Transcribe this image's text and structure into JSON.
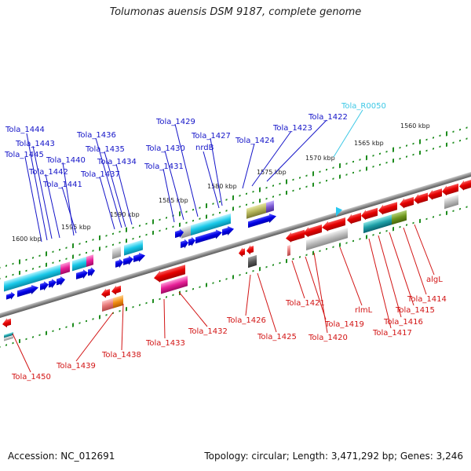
{
  "title": "Tolumonas auensis DSM 9187, complete genome",
  "footer": {
    "accession": "Accession: NC_012691",
    "topology": "Topology: circular; Length: 3,471,292 bp; Genes: 3,246"
  },
  "colors": {
    "forward_label": "#1414c8",
    "reverse_label": "#d21414",
    "rna_label": "#3cc8e6",
    "backbone": "#8a8a8a",
    "tick": "#1e8c1e"
  },
  "scale": [
    "1600 kbp",
    "1595 kbp",
    "1590 kbp",
    "1585 kbp",
    "1580 kbp",
    "1575 kbp",
    "1570 kbp",
    "1565 kbp",
    "1560 kbp"
  ],
  "forward_labels": [
    "Tola_1444",
    "Tola_1443",
    "Tola_1445",
    "Tola_1440",
    "Tola_1442",
    "Tola_1441",
    "Tola_1436",
    "Tola_1435",
    "Tola_1434",
    "Tola_1437",
    "Tola_1429",
    "Tola_1430",
    "Tola_1427",
    "nrdB",
    "Tola_1431",
    "Tola_1424",
    "Tola_1423",
    "Tola_1422"
  ],
  "rna_labels": [
    "Tola_R0050"
  ],
  "reverse_labels": [
    "Tola_1450",
    "Tola_1439",
    "Tola_1438",
    "Tola_1433",
    "Tola_1432",
    "Tola_1426",
    "Tola_1425",
    "Tola_1421",
    "Tola_1419",
    "Tola_1420",
    "rlmL",
    "Tola_1417",
    "Tola_1416",
    "Tola_1415",
    "Tola_1414",
    "algL"
  ]
}
